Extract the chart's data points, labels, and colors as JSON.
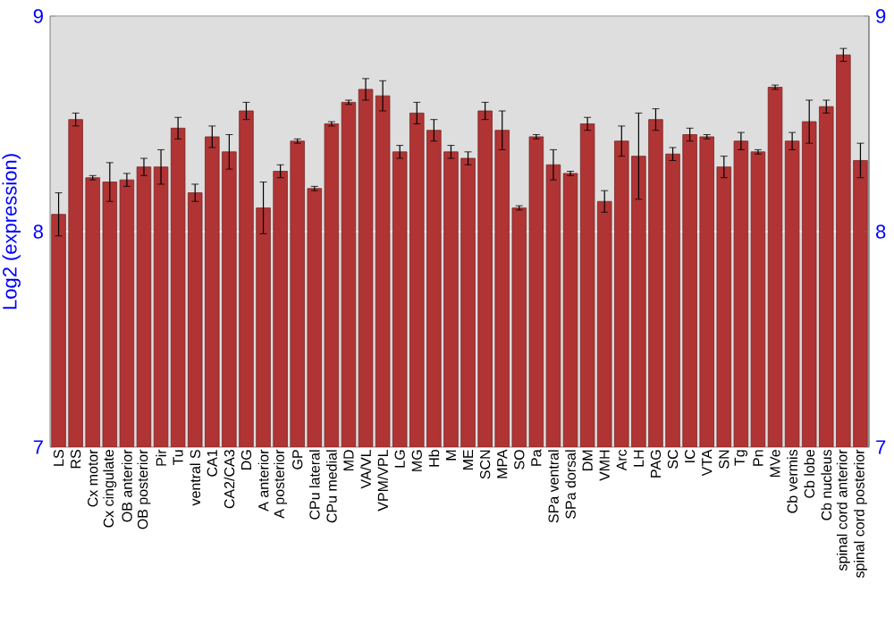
{
  "chart_data": {
    "type": "bar",
    "ylabel": "Log2 (expression)",
    "categories": [
      "LS",
      "RS",
      "Cx motor",
      "Cx cingulate",
      "OB anterior",
      "OB posterior",
      "Pir",
      "Tu",
      "ventral S",
      "CA1",
      "CA2/CA3",
      "DG",
      "A anterior",
      "A posterior",
      "GP",
      "CPu lateral",
      "CPu medial",
      "MD",
      "VA/VL",
      "VPM/VPL",
      "LG",
      "MG",
      "Hb",
      "M",
      "ME",
      "SCN",
      "MPA",
      "SO",
      "Pa",
      "SPa ventral",
      "SPa dorsal",
      "DM",
      "VMH",
      "Arc",
      "LH",
      "PAG",
      "SC",
      "IC",
      "VTA",
      "SN",
      "Tg",
      "Pn",
      "MVe",
      "Cb vermis",
      "Cb lobe",
      "Cb nucleus",
      "spinal cord anterior",
      "spinal cord posterior"
    ],
    "values": [
      8.08,
      8.52,
      8.25,
      8.23,
      8.24,
      8.3,
      8.3,
      8.48,
      8.18,
      8.44,
      8.37,
      8.56,
      8.11,
      8.28,
      8.42,
      8.2,
      8.5,
      8.6,
      8.66,
      8.63,
      8.37,
      8.55,
      8.47,
      8.37,
      8.34,
      8.56,
      8.47,
      8.11,
      8.44,
      8.31,
      8.27,
      8.5,
      8.14,
      8.42,
      8.35,
      8.52,
      8.36,
      8.45,
      8.44,
      8.3,
      8.42,
      8.37,
      8.67,
      8.42,
      8.51,
      8.58,
      8.82,
      8.33
    ],
    "errors": [
      0.1,
      0.03,
      0.01,
      0.09,
      0.03,
      0.04,
      0.08,
      0.05,
      0.04,
      0.05,
      0.08,
      0.04,
      0.12,
      0.03,
      0.01,
      0.01,
      0.01,
      0.01,
      0.05,
      0.07,
      0.03,
      0.05,
      0.05,
      0.03,
      0.03,
      0.04,
      0.09,
      0.01,
      0.01,
      0.07,
      0.01,
      0.03,
      0.05,
      0.07,
      0.2,
      0.05,
      0.03,
      0.03,
      0.01,
      0.05,
      0.04,
      0.01,
      0.01,
      0.04,
      0.1,
      0.03,
      0.03,
      0.08
    ],
    "color": "#b03434",
    "ylim": [
      7,
      9
    ],
    "yticks": [
      7,
      8,
      9
    ],
    "y2lim": [
      7,
      9
    ],
    "y2ticks": [
      7,
      8,
      9
    ],
    "grid": "y"
  }
}
